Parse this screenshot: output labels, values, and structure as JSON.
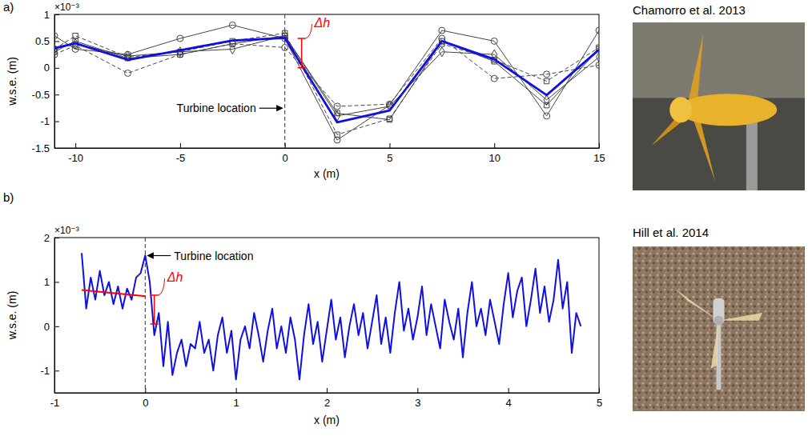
{
  "chart_data": [
    {
      "type": "line",
      "panel": "a)",
      "xlabel": "x (m)",
      "ylabel": "w.s.e. (m)",
      "y_multiplier": "×10⁻³",
      "x": [
        -11,
        -10,
        -7.5,
        -5,
        -2.5,
        0,
        2.5,
        5,
        7.5,
        10,
        12.5,
        15
      ],
      "series": [
        {
          "color": "#444444",
          "marker": "circle",
          "line_style": "solid",
          "values": [
            0.6,
            0.35,
            0.25,
            0.55,
            0.8,
            0.55,
            -1.35,
            -0.7,
            0.7,
            0.5,
            -0.9,
            0.7
          ]
        },
        {
          "color": "#444444",
          "marker": "circle",
          "line_style": "dashed",
          "values": [
            0.25,
            0.42,
            -0.1,
            0.25,
            0.45,
            0.38,
            -0.72,
            -0.68,
            0.55,
            -0.2,
            -0.12,
            0.05
          ]
        },
        {
          "color": "#444444",
          "marker": "square",
          "line_style": "dashed",
          "values": [
            0.35,
            0.6,
            0.2,
            0.3,
            0.5,
            0.65,
            -1.25,
            -0.95,
            0.45,
            0.15,
            -0.25,
            0.38
          ]
        },
        {
          "color": "#444444",
          "marker": "square",
          "line_style": "solid",
          "values": [
            0.3,
            0.5,
            0.18,
            0.25,
            0.45,
            0.6,
            -0.85,
            -0.97,
            0.5,
            0.12,
            -0.7,
            0.35
          ]
        },
        {
          "color": "#444444",
          "marker": "diamond",
          "line_style": "solid",
          "values": [
            0.35,
            0.45,
            0.22,
            0.3,
            0.35,
            0.6,
            -0.9,
            -0.72,
            0.3,
            0.25,
            -0.6,
            0.2
          ]
        },
        {
          "color": "#1010e0",
          "marker": "none",
          "line_style": "solid",
          "values": [
            0.37,
            0.46,
            0.15,
            0.33,
            0.51,
            0.56,
            -1.02,
            -0.8,
            0.5,
            0.16,
            -0.51,
            0.34
          ]
        }
      ],
      "xlim": [
        -11,
        15
      ],
      "xticks": [
        -10,
        -5,
        0,
        5,
        10,
        15
      ],
      "ylim": [
        -1.5,
        1
      ],
      "yticks": [
        -1.5,
        -1,
        -0.5,
        0,
        0.5,
        1
      ],
      "annotations": [
        {
          "text": "Turbine location",
          "x": 0
        },
        {
          "text": "Δh",
          "x": 0.8,
          "y0": 0,
          "y1": 0.55,
          "color": "#ff0000"
        }
      ]
    },
    {
      "type": "line",
      "panel": "b)",
      "xlabel": "x (m)",
      "ylabel": "w.s.e. (m)",
      "y_multiplier": "×10⁻³",
      "x": [
        -0.7,
        -0.65,
        -0.6,
        -0.55,
        -0.5,
        -0.45,
        -0.4,
        -0.35,
        -0.3,
        -0.25,
        -0.2,
        -0.15,
        -0.1,
        -0.05,
        0,
        0.05,
        0.1,
        0.15,
        0.2,
        0.25,
        0.3,
        0.35,
        0.4,
        0.45,
        0.5,
        0.55,
        0.6,
        0.65,
        0.7,
        0.75,
        0.8,
        0.85,
        0.9,
        0.95,
        1,
        1.05,
        1.1,
        1.15,
        1.2,
        1.25,
        1.3,
        1.35,
        1.4,
        1.45,
        1.5,
        1.55,
        1.6,
        1.65,
        1.7,
        1.75,
        1.8,
        1.85,
        1.9,
        1.95,
        2,
        2.05,
        2.1,
        2.15,
        2.2,
        2.25,
        2.3,
        2.35,
        2.4,
        2.45,
        2.5,
        2.55,
        2.6,
        2.65,
        2.7,
        2.75,
        2.8,
        2.85,
        2.9,
        2.95,
        3,
        3.05,
        3.1,
        3.15,
        3.2,
        3.25,
        3.3,
        3.35,
        3.4,
        3.45,
        3.5,
        3.55,
        3.6,
        3.65,
        3.7,
        3.75,
        3.8,
        3.85,
        3.9,
        3.95,
        4,
        4.05,
        4.1,
        4.15,
        4.2,
        4.25,
        4.3,
        4.35,
        4.4,
        4.45,
        4.5,
        4.55,
        4.6,
        4.65,
        4.7,
        4.75,
        4.8
      ],
      "series": [
        {
          "color": "#1010e0",
          "marker": "none",
          "line_style": "solid",
          "values": [
            1.65,
            0.4,
            1.1,
            0.6,
            1.25,
            0.7,
            1.0,
            0.5,
            0.9,
            0.4,
            0.85,
            0.6,
            1.1,
            1.2,
            1.6,
            1.0,
            -0.2,
            0.3,
            -0.9,
            0.1,
            -1.1,
            -0.6,
            -0.3,
            -0.9,
            -0.4,
            -0.5,
            0.1,
            -0.6,
            -0.3,
            -1.0,
            -0.2,
            0.2,
            -0.6,
            -0.1,
            -1.2,
            -0.3,
            0.0,
            -0.5,
            0.3,
            -0.2,
            -0.8,
            -0.1,
            0.4,
            -0.5,
            0.0,
            -0.6,
            0.2,
            -0.3,
            -1.2,
            -0.2,
            0.5,
            -0.4,
            0.1,
            -0.8,
            -0.1,
            0.6,
            -0.3,
            0.2,
            -0.7,
            0.0,
            0.5,
            -0.2,
            0.3,
            -0.5,
            0.1,
            0.7,
            -0.4,
            0.2,
            -0.6,
            0.3,
            1.0,
            -0.1,
            0.4,
            -0.3,
            0.2,
            0.9,
            -0.2,
            0.5,
            0.0,
            -0.5,
            0.6,
            0.1,
            -0.3,
            0.4,
            -0.7,
            0.3,
            1.0,
            0.0,
            0.4,
            -0.2,
            0.6,
            0.1,
            -0.4,
            0.5,
            1.2,
            0.2,
            0.8,
            1.1,
            0.0,
            0.6,
            1.3,
            0.3,
            0.9,
            0.1,
            0.6,
            1.5,
            0.4,
            1.0,
            -0.6,
            0.3,
            0.0
          ]
        },
        {
          "color": "#ff0000",
          "marker": "none",
          "line_style": "solid",
          "x": [
            -0.7,
            0
          ],
          "values": [
            0.82,
            0.68
          ]
        }
      ],
      "xlim": [
        -1,
        5
      ],
      "xticks": [
        -1,
        0,
        1,
        2,
        3,
        4,
        5
      ],
      "ylim": [
        -1.5,
        2
      ],
      "yticks": [
        -1,
        0,
        1,
        2
      ],
      "annotations": [
        {
          "text": "Turbine location",
          "x": 0
        },
        {
          "text": "Δh",
          "x": 0.1,
          "y0": 0.05,
          "y1": 0.7,
          "color": "#ff0000"
        }
      ]
    }
  ],
  "photos": [
    {
      "caption": "Chamorro et al. 2013"
    },
    {
      "caption": "Hill et al. 2014"
    }
  ]
}
